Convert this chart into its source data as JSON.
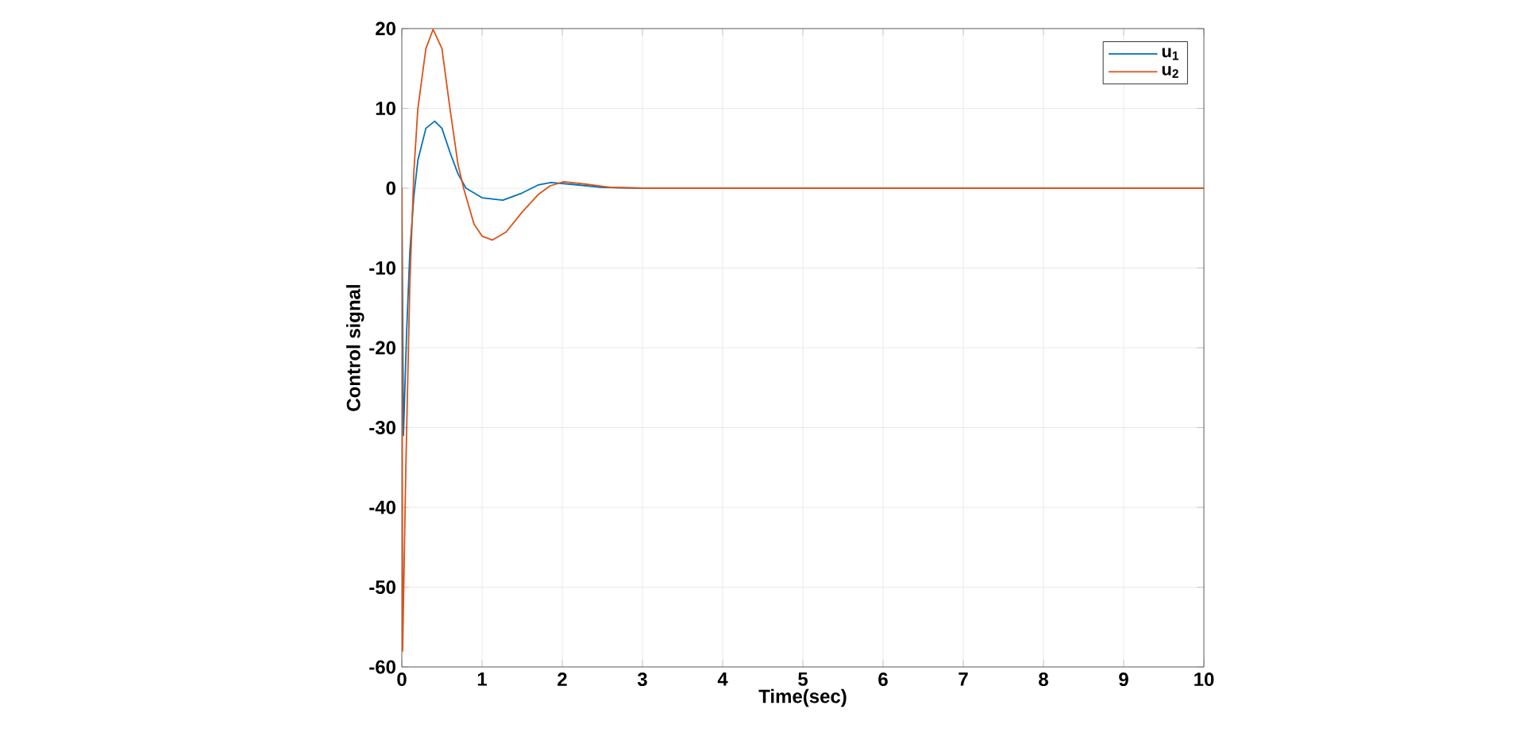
{
  "chart_data": {
    "type": "line",
    "xlabel": "Time(sec)",
    "ylabel": "Control signal",
    "xlim": [
      0,
      10
    ],
    "ylim": [
      -60,
      20
    ],
    "xticks": [
      0,
      1,
      2,
      3,
      4,
      5,
      6,
      7,
      8,
      9,
      10
    ],
    "yticks": [
      -60,
      -50,
      -40,
      -30,
      -20,
      -10,
      0,
      10,
      20
    ],
    "grid": true,
    "legend": "top right",
    "series": [
      {
        "name": "u$_{1}$",
        "color": "#0072bd",
        "x": [
          0,
          0.02,
          0.06,
          0.1,
          0.15,
          0.2,
          0.3,
          0.41,
          0.5,
          0.6,
          0.7,
          0.8,
          1.0,
          1.26,
          1.5,
          1.7,
          1.86,
          2.1,
          2.5,
          3,
          10
        ],
        "values": [
          0,
          -31,
          -18,
          -8,
          -1,
          3.5,
          7.5,
          8.4,
          7.5,
          4.5,
          1.8,
          0,
          -1.2,
          -1.5,
          -0.6,
          0.4,
          0.7,
          0.5,
          0.1,
          0,
          0
        ]
      },
      {
        "name": "u$_{2}$",
        "color": "#d95319",
        "x": [
          0,
          0.01,
          0.05,
          0.1,
          0.15,
          0.2,
          0.3,
          0.39,
          0.5,
          0.6,
          0.7,
          0.77,
          0.9,
          1.0,
          1.13,
          1.3,
          1.5,
          1.7,
          1.85,
          2.02,
          2.3,
          2.6,
          3,
          10
        ],
        "values": [
          0,
          -58,
          -35,
          -12,
          2,
          10,
          17.5,
          19.9,
          17.5,
          10,
          3,
          0,
          -4.5,
          -6,
          -6.5,
          -5.5,
          -3,
          -0.8,
          0.3,
          0.8,
          0.5,
          0.1,
          0,
          0
        ]
      }
    ]
  }
}
